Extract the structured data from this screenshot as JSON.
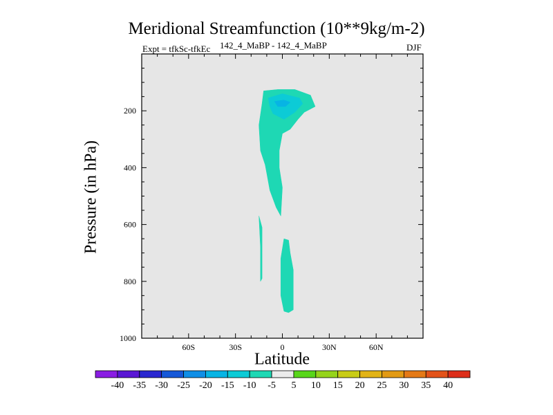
{
  "chart_data": {
    "type": "heatmap",
    "title": "Meridional Streamfunction (10**9kg/m-2)",
    "left_subtitle": "Expt = tfkSc-tfkEc",
    "center_subtitle": "142_4_MaBP - 142_4_MaBP",
    "right_subtitle": "DJF",
    "xlabel": "Latitude",
    "ylabel": "Pressure (in hPa)",
    "xlim": [
      -90,
      90
    ],
    "ylim": [
      1000,
      0
    ],
    "x_ticks": [
      {
        "value": -60,
        "label": "60S"
      },
      {
        "value": -30,
        "label": "30S"
      },
      {
        "value": 0,
        "label": "0"
      },
      {
        "value": 30,
        "label": "30N"
      },
      {
        "value": 60,
        "label": "60N"
      }
    ],
    "y_ticks": [
      {
        "value": 200,
        "label": "200"
      },
      {
        "value": 400,
        "label": "400"
      },
      {
        "value": 600,
        "label": "600"
      },
      {
        "value": 800,
        "label": "800"
      },
      {
        "value": 1000,
        "label": "1000"
      }
    ],
    "colorbar": {
      "labels": [
        "-40",
        "-35",
        "-30",
        "-25",
        "-20",
        "-15",
        "-10",
        "-5",
        "5",
        "10",
        "15",
        "20",
        "25",
        "30",
        "35",
        "40"
      ],
      "colors": [
        "#8a1de3",
        "#5a17d4",
        "#2a27d0",
        "#1658d8",
        "#0f8ee6",
        "#07b4e4",
        "#0ccbd6",
        "#1ed8b4",
        "#ebebeb",
        "#58d61a",
        "#95d41b",
        "#c8cc16",
        "#e2b316",
        "#e29a14",
        "#e47916",
        "#e35219",
        "#dd2e1a"
      ]
    },
    "background_color": "#e6e6e6",
    "regions": [
      {
        "level": "-10 to -5",
        "color": "#1ed8b4",
        "points": [
          [
            -12,
            130
          ],
          [
            -3,
            125
          ],
          [
            8,
            125
          ],
          [
            18,
            145
          ],
          [
            21,
            185
          ],
          [
            14,
            205
          ],
          [
            10,
            230
          ],
          [
            5,
            265
          ],
          [
            0,
            280
          ],
          [
            -2,
            340
          ],
          [
            -2,
            400
          ],
          [
            0,
            470
          ],
          [
            -1,
            570
          ],
          [
            -4,
            540
          ],
          [
            -8,
            480
          ],
          [
            -10,
            420
          ],
          [
            -11,
            390
          ],
          [
            -14,
            340
          ],
          [
            -15,
            250
          ],
          [
            -13,
            175
          ]
        ]
      },
      {
        "level": "-15 to -10",
        "color": "#0ccbd6",
        "points": [
          [
            -9,
            155
          ],
          [
            0,
            140
          ],
          [
            11,
            155
          ],
          [
            13,
            175
          ],
          [
            8,
            205
          ],
          [
            1,
            230
          ],
          [
            -6,
            210
          ],
          [
            -8,
            185
          ]
        ]
      },
      {
        "level": "-20 to -15",
        "color": "#07b4e4",
        "points": [
          [
            -5,
            167
          ],
          [
            1,
            162
          ],
          [
            5,
            170
          ],
          [
            2,
            185
          ],
          [
            -3,
            185
          ]
        ]
      },
      {
        "level": "-10 to -5",
        "color": "#1ed8b4",
        "points": [
          [
            -15,
            570
          ],
          [
            -13,
            610
          ],
          [
            -13,
            700
          ],
          [
            -13,
            790
          ],
          [
            -14,
            800
          ],
          [
            -14,
            680
          ]
        ]
      },
      {
        "level": "-10 to -5",
        "color": "#1ed8b4",
        "points": [
          [
            1,
            650
          ],
          [
            4,
            655
          ],
          [
            5,
            700
          ],
          [
            7,
            760
          ],
          [
            7,
            900
          ],
          [
            4,
            910
          ],
          [
            1,
            905
          ],
          [
            -1,
            850
          ],
          [
            -1,
            720
          ]
        ]
      }
    ]
  }
}
